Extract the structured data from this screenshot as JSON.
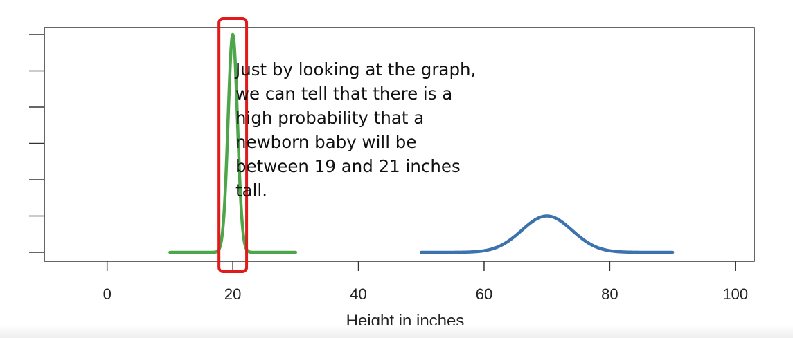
{
  "chart_data": {
    "type": "line",
    "title": "",
    "xlabel": "Height in inches",
    "ylabel": "",
    "xlim": [
      -10,
      103
    ],
    "xticks": [
      0,
      20,
      40,
      60,
      80,
      100
    ],
    "xtick_labels": [
      "0",
      "20",
      "40",
      "60",
      "80",
      "100"
    ],
    "y_tick_count": 7,
    "ylim": [
      -0.02,
      0.62
    ],
    "grid": false,
    "series": [
      {
        "color": "#4ea64a",
        "mean": 20,
        "sd": 0.75,
        "x_range": [
          10,
          30
        ],
        "peak_density": 0.6
      },
      {
        "color": "#3c72ad",
        "mean": 70,
        "sd": 4,
        "x_range": [
          50,
          90
        ],
        "peak_density": 0.1
      }
    ],
    "highlight": {
      "x_range": [
        17.8,
        22.2
      ],
      "color": "#e11b1b"
    },
    "annotation": "Just by looking at the graph, we can tell that there is a high probability that a newborn baby will be between 19 and 21 inches tall."
  }
}
